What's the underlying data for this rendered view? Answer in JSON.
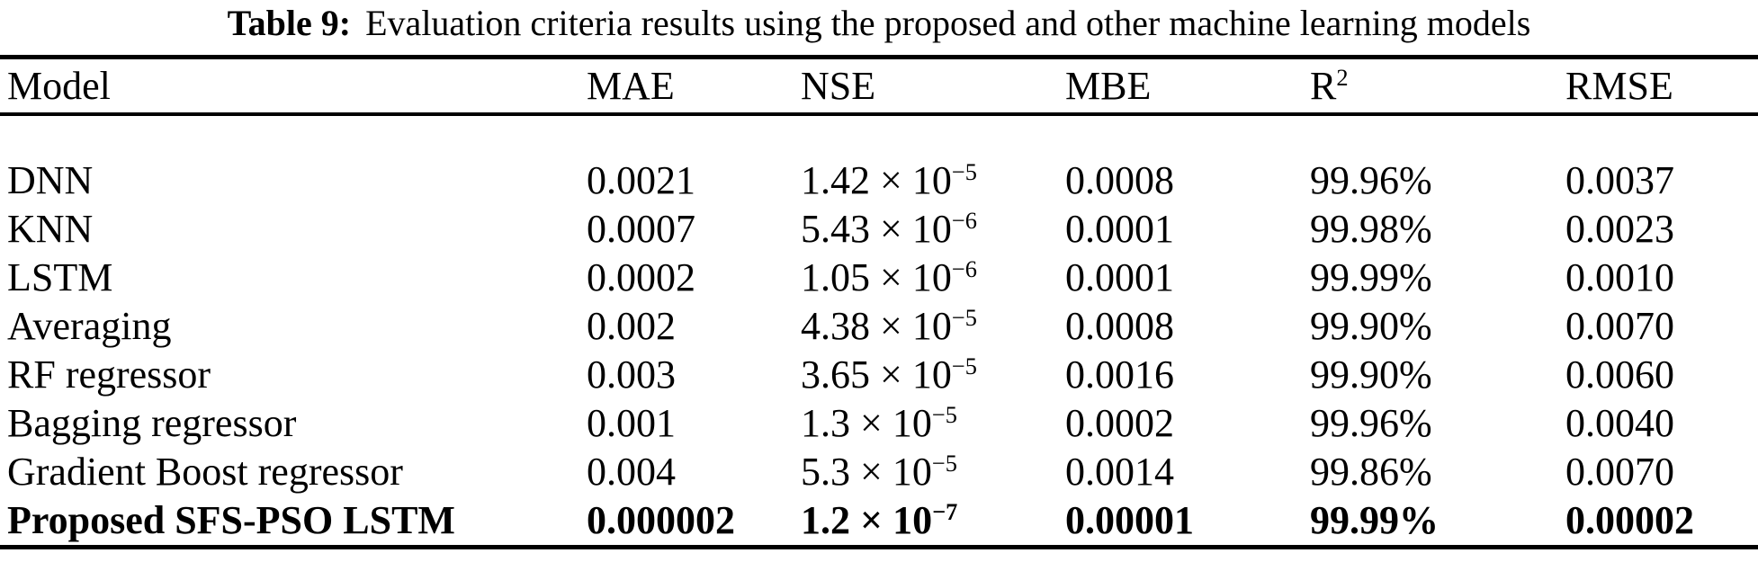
{
  "title": {
    "label": "Table 9:",
    "text": "Evaluation criteria results using the proposed and other machine learning models"
  },
  "table": {
    "headers": {
      "model": "Model",
      "mae": "MAE",
      "nse": "NSE",
      "mbe": "MBE",
      "r2_base": "R",
      "r2_sup": "2",
      "rmse": "RMSE"
    },
    "rows": [
      {
        "model": "DNN",
        "mae": "0.0021",
        "nse_prefix": "1.42 × 10",
        "nse_exp": "−5",
        "mbe": "0.0008",
        "r2": "99.96%",
        "rmse": "0.0037"
      },
      {
        "model": "KNN",
        "mae": "0.0007",
        "nse_prefix": "5.43 × 10",
        "nse_exp": "−6",
        "mbe": "0.0001",
        "r2": "99.98%",
        "rmse": "0.0023"
      },
      {
        "model": "LSTM",
        "mae": "0.0002",
        "nse_prefix": "1.05 × 10",
        "nse_exp": "−6",
        "mbe": "0.0001",
        "r2": "99.99%",
        "rmse": "0.0010"
      },
      {
        "model": "Averaging",
        "mae": "0.002",
        "nse_prefix": "4.38 × 10",
        "nse_exp": "−5",
        "mbe": "0.0008",
        "r2": "99.90%",
        "rmse": "0.0070"
      },
      {
        "model": "RF regressor",
        "mae": "0.003",
        "nse_prefix": "3.65 × 10",
        "nse_exp": "−5",
        "mbe": "0.0016",
        "r2": "99.90%",
        "rmse": "0.0060"
      },
      {
        "model": "Bagging regressor",
        "mae": "0.001",
        "nse_prefix": "1.3 × 10",
        "nse_exp": "−5",
        "mbe": "0.0002",
        "r2": "99.96%",
        "rmse": "0.0040"
      },
      {
        "model": "Gradient Boost regressor",
        "mae": "0.004",
        "nse_prefix": "5.3 × 10",
        "nse_exp": "−5",
        "mbe": "0.0014",
        "r2": "99.86%",
        "rmse": "0.0070"
      },
      {
        "model": "Proposed SFS-PSO LSTM",
        "mae": "0.000002",
        "nse_prefix": "1.2 × 10",
        "nse_exp": "−7",
        "mbe": "0.00001",
        "r2": "99.99%",
        "rmse": "0.00002"
      }
    ]
  }
}
